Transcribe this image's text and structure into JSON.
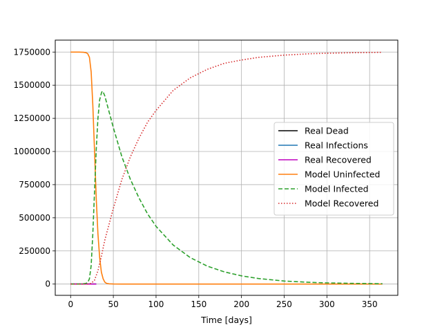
{
  "chart_data": {
    "type": "line",
    "title": "",
    "xlabel": "Time [days]",
    "ylabel": "",
    "xlim": [
      -18,
      383
    ],
    "ylim": [
      -85000,
      1840000
    ],
    "xticks": [
      0,
      50,
      100,
      150,
      200,
      250,
      300,
      350
    ],
    "xtick_labels": [
      "0",
      "50",
      "100",
      "150",
      "200",
      "250",
      "300",
      "350"
    ],
    "yticks": [
      0,
      250000,
      500000,
      750000,
      1000000,
      1250000,
      1500000,
      1750000
    ],
    "ytick_labels": [
      "0",
      "250000",
      "500000",
      "750000",
      "1000000",
      "1250000",
      "1500000",
      "1750000"
    ],
    "grid": true,
    "legend_position": "center-right",
    "series": [
      {
        "name": "Real Dead",
        "color": "#000000",
        "style": "solid",
        "x": [
          0,
          10,
          20,
          30
        ],
        "y": [
          0,
          0,
          0,
          0
        ]
      },
      {
        "name": "Real Infections",
        "color": "#1f77b4",
        "style": "solid",
        "x": [
          0,
          10,
          20,
          30
        ],
        "y": [
          0,
          0,
          0,
          0
        ]
      },
      {
        "name": "Real Recovered",
        "color": "#bf00bf",
        "style": "solid",
        "x": [
          0,
          10,
          20,
          30
        ],
        "y": [
          0,
          0,
          0,
          0
        ]
      },
      {
        "name": "Model Uninfected",
        "color": "#ff7f0e",
        "style": "solid",
        "x": [
          0,
          10,
          15,
          18,
          20,
          22,
          24,
          26,
          28,
          30,
          32,
          34,
          36,
          38,
          40,
          42,
          45,
          50,
          60,
          100,
          200,
          300,
          365
        ],
        "y": [
          1750000,
          1750000,
          1748000,
          1745000,
          1738000,
          1710000,
          1600000,
          1350000,
          1000000,
          640000,
          380000,
          200000,
          90000,
          40000,
          15000,
          6000,
          2000,
          500,
          0,
          0,
          0,
          0,
          0
        ]
      },
      {
        "name": "Model Infected",
        "color": "#2ca02c",
        "style": "dashed",
        "x": [
          0,
          10,
          15,
          18,
          20,
          22,
          24,
          26,
          28,
          30,
          32,
          34,
          36,
          37,
          38,
          40,
          45,
          50,
          60,
          70,
          80,
          90,
          100,
          120,
          140,
          160,
          180,
          200,
          220,
          250,
          280,
          300,
          330,
          365
        ],
        "y": [
          0,
          0,
          2000,
          5000,
          12000,
          40000,
          140000,
          380000,
          700000,
          1020000,
          1250000,
          1390000,
          1440000,
          1455000,
          1450000,
          1420000,
          1300000,
          1180000,
          960000,
          790000,
          650000,
          530000,
          435000,
          295000,
          200000,
          135000,
          92000,
          62000,
          42000,
          23000,
          13000,
          9000,
          5000,
          2500
        ]
      },
      {
        "name": "Model Recovered",
        "color": "#d62728",
        "style": "dotted",
        "x": [
          0,
          20,
          24,
          28,
          32,
          36,
          40,
          45,
          50,
          60,
          70,
          80,
          90,
          100,
          120,
          140,
          160,
          180,
          200,
          220,
          250,
          280,
          300,
          330,
          365
        ],
        "y": [
          0,
          0,
          5000,
          30000,
          100000,
          210000,
          330000,
          450000,
          570000,
          790000,
          960000,
          1100000,
          1220000,
          1310000,
          1460000,
          1555000,
          1620000,
          1665000,
          1690000,
          1710000,
          1727000,
          1737000,
          1741000,
          1745000,
          1748000
        ]
      }
    ]
  }
}
